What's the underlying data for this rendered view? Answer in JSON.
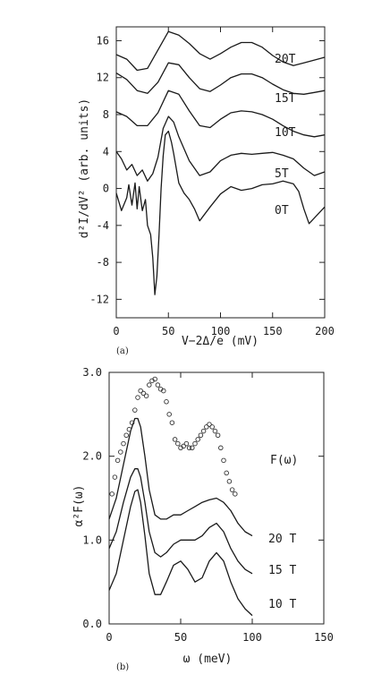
{
  "chart_data": [
    {
      "type": "line",
      "panel_label": "(a)",
      "xlabel": "V−2Δ/e (mV)",
      "ylabel": "d²I/dV² (arb. units)",
      "xlim": [
        0,
        200
      ],
      "ylim": [
        -14,
        17.5
      ],
      "xticks": [
        0,
        50,
        100,
        150,
        200
      ],
      "yticks": [
        -12,
        -8,
        -4,
        0,
        4,
        8,
        12,
        16
      ],
      "grid": false,
      "series": [
        {
          "name": "20T",
          "x": [
            0,
            10,
            20,
            30,
            40,
            50,
            60,
            70,
            80,
            90,
            100,
            110,
            120,
            130,
            140,
            150,
            160,
            170,
            180,
            190,
            200
          ],
          "y": [
            14.5,
            14.0,
            12.8,
            13.0,
            15.0,
            17.0,
            16.6,
            15.7,
            14.6,
            14.0,
            14.6,
            15.3,
            15.8,
            15.8,
            15.3,
            14.4,
            13.7,
            13.3,
            13.6,
            13.9,
            14.2
          ]
        },
        {
          "name": "15T",
          "x": [
            0,
            10,
            20,
            30,
            40,
            50,
            60,
            70,
            80,
            90,
            100,
            110,
            120,
            130,
            140,
            150,
            160,
            170,
            180,
            190,
            200
          ],
          "y": [
            12.5,
            11.8,
            10.6,
            10.3,
            11.5,
            13.6,
            13.4,
            12.0,
            10.8,
            10.5,
            11.2,
            12.0,
            12.4,
            12.4,
            12.0,
            11.3,
            10.7,
            10.3,
            10.2,
            10.4,
            10.6
          ]
        },
        {
          "name": "10T",
          "x": [
            0,
            10,
            20,
            30,
            40,
            50,
            60,
            70,
            80,
            90,
            100,
            110,
            120,
            130,
            140,
            150,
            160,
            170,
            180,
            190,
            200
          ],
          "y": [
            8.3,
            7.8,
            6.8,
            6.8,
            8.2,
            10.6,
            10.2,
            8.4,
            6.8,
            6.6,
            7.5,
            8.2,
            8.4,
            8.3,
            8.0,
            7.5,
            6.8,
            6.2,
            5.8,
            5.6,
            5.8
          ]
        },
        {
          "name": "5T",
          "x": [
            0,
            5,
            10,
            15,
            20,
            25,
            30,
            35,
            40,
            45,
            50,
            55,
            60,
            70,
            80,
            90,
            100,
            110,
            120,
            130,
            140,
            150,
            160,
            170,
            180,
            190,
            200
          ],
          "y": [
            4.0,
            3.2,
            2.0,
            2.6,
            1.4,
            2.0,
            0.8,
            1.6,
            3.4,
            6.5,
            7.8,
            7.2,
            5.6,
            3.0,
            1.4,
            1.8,
            3.0,
            3.6,
            3.8,
            3.7,
            3.8,
            3.9,
            3.6,
            3.2,
            2.2,
            1.4,
            1.8
          ]
        },
        {
          "name": "0T",
          "x": [
            0,
            5,
            10,
            12,
            15,
            18,
            20,
            22,
            25,
            28,
            30,
            33,
            35,
            37,
            39,
            41,
            43,
            45,
            47,
            50,
            53,
            55,
            60,
            65,
            70,
            75,
            80,
            90,
            100,
            110,
            120,
            130,
            140,
            150,
            160,
            170,
            175,
            180,
            185,
            190,
            200
          ],
          "y": [
            -0.5,
            -2.4,
            -1.0,
            0.4,
            -1.8,
            0.6,
            -2.2,
            0.2,
            -2.4,
            -1.2,
            -4.0,
            -5.0,
            -7.5,
            -11.5,
            -9.5,
            -5.0,
            0.0,
            3.5,
            5.8,
            6.2,
            5.0,
            3.8,
            0.6,
            -0.5,
            -1.2,
            -2.2,
            -3.5,
            -2.0,
            -0.6,
            0.2,
            -0.2,
            0.0,
            0.4,
            0.5,
            0.8,
            0.5,
            -0.3,
            -2.2,
            -3.8,
            -3.2,
            -2.0
          ]
        }
      ]
    },
    {
      "type": "line",
      "panel_label": "(b)",
      "xlabel": "ω (meV)",
      "ylabel": "α²F(ω)",
      "xlim": [
        0,
        150
      ],
      "ylim": [
        0,
        3.0
      ],
      "xticks": [
        0,
        50,
        100,
        150
      ],
      "yticks": [
        0.0,
        1.0,
        2.0,
        3.0
      ],
      "ytick_labels": [
        "0.0",
        "1.0",
        "2.0",
        "3.0"
      ],
      "grid": false,
      "series": [
        {
          "name": "20 T",
          "x": [
            0,
            5,
            10,
            15,
            18,
            20,
            22,
            25,
            28,
            32,
            36,
            40,
            45,
            50,
            55,
            60,
            65,
            70,
            75,
            80,
            85,
            90,
            95,
            100
          ],
          "y": [
            1.25,
            1.5,
            1.9,
            2.3,
            2.45,
            2.45,
            2.35,
            2.0,
            1.6,
            1.3,
            1.25,
            1.25,
            1.3,
            1.3,
            1.35,
            1.4,
            1.45,
            1.48,
            1.5,
            1.45,
            1.35,
            1.2,
            1.1,
            1.05
          ]
        },
        {
          "name": "15 T",
          "x": [
            0,
            5,
            10,
            15,
            18,
            20,
            22,
            25,
            28,
            32,
            36,
            40,
            45,
            50,
            55,
            60,
            65,
            70,
            75,
            80,
            85,
            90,
            95,
            100
          ],
          "y": [
            0.9,
            1.1,
            1.45,
            1.75,
            1.85,
            1.85,
            1.75,
            1.45,
            1.1,
            0.85,
            0.8,
            0.85,
            0.95,
            1.0,
            1.0,
            1.0,
            1.05,
            1.15,
            1.2,
            1.1,
            0.9,
            0.75,
            0.65,
            0.6
          ]
        },
        {
          "name": "10 T",
          "x": [
            0,
            5,
            10,
            15,
            18,
            20,
            22,
            25,
            28,
            32,
            36,
            40,
            45,
            50,
            55,
            60,
            65,
            70,
            75,
            80,
            85,
            90,
            95,
            100
          ],
          "y": [
            0.4,
            0.6,
            1.0,
            1.4,
            1.58,
            1.6,
            1.45,
            1.05,
            0.6,
            0.35,
            0.35,
            0.5,
            0.7,
            0.75,
            0.65,
            0.5,
            0.55,
            0.75,
            0.85,
            0.75,
            0.5,
            0.3,
            0.18,
            0.1
          ]
        },
        {
          "name": "F(ω)",
          "style": "markers",
          "x": [
            2,
            4,
            6,
            8,
            10,
            12,
            14,
            16,
            18,
            20,
            22,
            24,
            26,
            28,
            30,
            32,
            34,
            36,
            38,
            40,
            42,
            44,
            46,
            48,
            50,
            52,
            54,
            56,
            58,
            60,
            62,
            64,
            66,
            68,
            70,
            72,
            74,
            76,
            78,
            80,
            82,
            84,
            86,
            88
          ],
          "y": [
            1.55,
            1.75,
            1.95,
            2.05,
            2.15,
            2.25,
            2.32,
            2.4,
            2.55,
            2.7,
            2.78,
            2.75,
            2.72,
            2.85,
            2.9,
            2.92,
            2.85,
            2.8,
            2.78,
            2.65,
            2.5,
            2.4,
            2.2,
            2.15,
            2.1,
            2.12,
            2.15,
            2.1,
            2.1,
            2.15,
            2.2,
            2.25,
            2.3,
            2.35,
            2.38,
            2.35,
            2.3,
            2.25,
            2.1,
            1.95,
            1.8,
            1.7,
            1.6,
            1.55
          ]
        }
      ]
    }
  ],
  "curve_labels_a": [
    "20T",
    "15T",
    "10T",
    "5T",
    "0T"
  ],
  "curve_labels_b": [
    "F(ω)",
    "20 T",
    "15 T",
    "10 T"
  ]
}
